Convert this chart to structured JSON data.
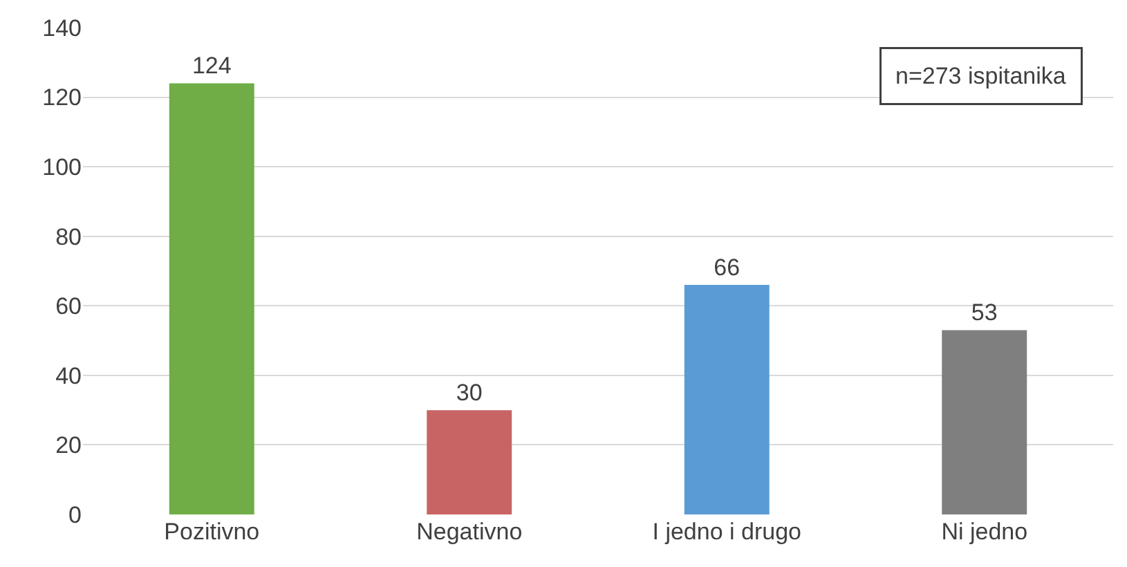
{
  "chart_data": {
    "type": "bar",
    "categories": [
      "Pozitivno",
      "Negativno",
      "I jedno i drugo",
      "Ni jedno"
    ],
    "values": [
      124,
      30,
      66,
      53
    ],
    "colors": [
      "#70ad47",
      "#c96464",
      "#5b9bd5",
      "#7f7f7f"
    ],
    "ylim": [
      0,
      140
    ],
    "yticks": [
      0,
      20,
      40,
      60,
      80,
      100,
      120,
      140
    ],
    "grid": "y",
    "data_labels": true,
    "annotations": [
      "n=273 ispitanika"
    ]
  }
}
